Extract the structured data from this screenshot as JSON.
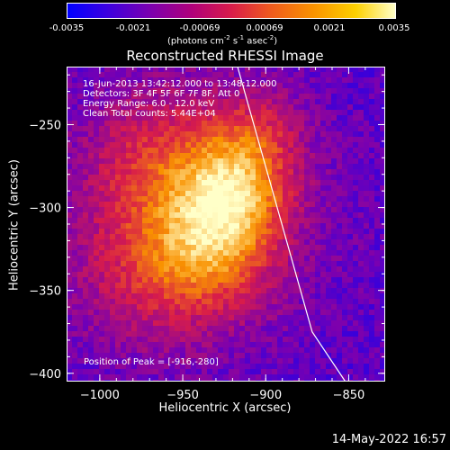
{
  "colorbar": {
    "ticks": [
      "-0.0035",
      "-0.0021",
      "-0.00069",
      "0.00069",
      "0.0021",
      "0.0035"
    ],
    "units_prefix": "(photons cm",
    "units_exp1": "-2",
    "units_mid1": " s",
    "units_exp2": "-1",
    "units_mid2": " asec",
    "units_exp3": "-2",
    "units_suffix": ")",
    "colors": [
      "#0000ff",
      "#7a00b0",
      "#d81c4a",
      "#f99200",
      "#ffffc8"
    ]
  },
  "annotations": {
    "line1": "16-Jun-2013 13:42:12.000 to 13:48:12.000",
    "line2": "Detectors: 3F 4F 5F 6F 7F 8F, Att 0",
    "line3": "Energy Range: 6.0 - 12.0 keV",
    "line4": "Clean     Total counts: 5.44E+04",
    "peak": "Position of Peak = [-916,-280]"
  },
  "timestamp": "14-May-2022 16:57",
  "chart_data": {
    "type": "heatmap",
    "title": "Reconstructed RHESSI Image",
    "xlabel": "Heliocentric X (arcsec)",
    "ylabel": "Heliocentric Y (arcsec)",
    "xlim": [
      -1020,
      -828
    ],
    "ylim": [
      -405,
      -215
    ],
    "xticks": [
      -1000,
      -950,
      -900,
      -850
    ],
    "yticks": [
      -250,
      -300,
      -350,
      -400
    ],
    "xtick_labels": [
      "−1000",
      "−950",
      "−900",
      "−850"
    ],
    "ytick_labels": [
      "−250",
      "−300",
      "−350",
      "−400"
    ],
    "zlim": [
      -0.0035,
      0.0035
    ],
    "peak_position": [
      -916,
      -280
    ],
    "limb_line": [
      [
        -917,
        -215
      ],
      [
        -872,
        -375
      ],
      [
        -852,
        -405
      ]
    ]
  }
}
